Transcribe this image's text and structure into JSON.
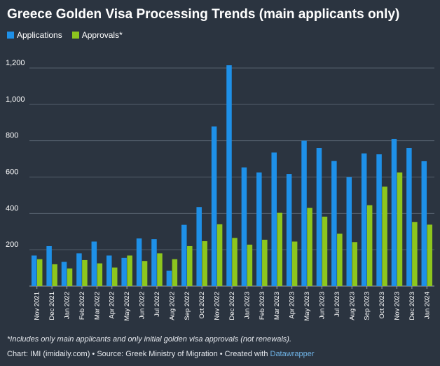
{
  "chart_data": {
    "type": "bar",
    "title": "Greece Golden Visa Processing Trends (main applicants only)",
    "categories": [
      "Nov 2021",
      "Dec 2021",
      "Jan 2022",
      "Feb 2022",
      "Mar 2022",
      "Apr 2022",
      "May 2022",
      "Jun 2022",
      "Jul 2022",
      "Aug 2022",
      "Sep 2022",
      "Oct 2022",
      "Nov 2022",
      "Dec 2022",
      "Jan 2023",
      "Feb 2023",
      "Mar 2023",
      "Apr 2023",
      "May 2023",
      "Jun 2023",
      "Jul 2023",
      "Aug 2023",
      "Sep 2023",
      "Oct 2023",
      "Nov 2023",
      "Dec 2023",
      "Jan 2024"
    ],
    "series": [
      {
        "name": "Applications",
        "color": "#1e90e8",
        "values": [
          168,
          220,
          133,
          180,
          245,
          168,
          155,
          262,
          258,
          85,
          337,
          435,
          878,
          1215,
          653,
          625,
          735,
          617,
          800,
          760,
          688,
          600,
          730,
          725,
          810,
          760,
          687
        ]
      },
      {
        "name": "Approvals*",
        "color": "#8dc61e",
        "values": [
          148,
          120,
          97,
          143,
          125,
          102,
          168,
          138,
          180,
          148,
          220,
          247,
          340,
          265,
          228,
          255,
          403,
          245,
          430,
          382,
          288,
          242,
          445,
          547,
          625,
          352,
          338
        ]
      }
    ],
    "yticks": [
      200,
      400,
      600,
      800,
      1000,
      1200
    ],
    "ytick_labels": [
      "200",
      "400",
      "600",
      "800",
      "1,000",
      "1,200"
    ],
    "ylim": [
      0,
      1300
    ],
    "xlabel": "",
    "ylabel": "",
    "legend_position": "top-left"
  },
  "footnote": "*Includes only main applicants and only initial golden visa approvals (not renewals).",
  "credit": {
    "text": "Chart: IMI (imidaily.com) • Source: Greek Ministry of Migration • Created with ",
    "link": "Datawrapper"
  }
}
